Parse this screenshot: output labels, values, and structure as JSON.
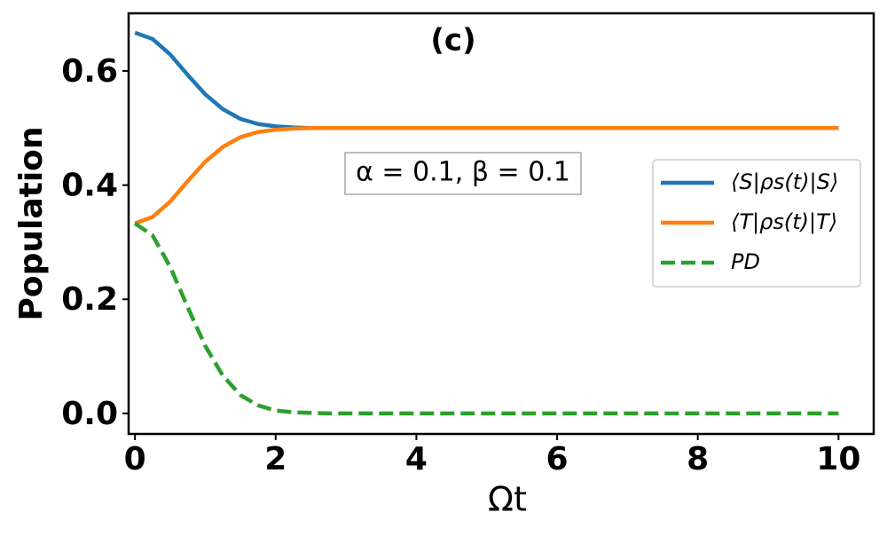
{
  "chart_data": {
    "type": "line",
    "title": "(c)",
    "annotation": "α = 0.1, β = 0.1",
    "x_label": "Ωt",
    "y_label": "Population",
    "x": [
      0,
      0.25,
      0.5,
      0.75,
      1,
      1.25,
      1.5,
      1.75,
      2,
      2.25,
      2.5,
      2.75,
      3,
      4,
      5,
      6,
      7,
      8,
      9,
      10
    ],
    "series": [
      {
        "name": "⟨S|ρs(t)|S⟩",
        "color": "#1f77b4",
        "style": "solid",
        "values": [
          0.667,
          0.656,
          0.629,
          0.593,
          0.559,
          0.533,
          0.516,
          0.507,
          0.503,
          0.501,
          0.5,
          0.5,
          0.5,
          0.5,
          0.5,
          0.5,
          0.5,
          0.5,
          0.5,
          0.5
        ]
      },
      {
        "name": "⟨T|ρs(t)|T⟩",
        "color": "#ff7f0e",
        "style": "solid",
        "values": [
          0.333,
          0.344,
          0.371,
          0.407,
          0.441,
          0.467,
          0.484,
          0.493,
          0.497,
          0.499,
          0.5,
          0.5,
          0.5,
          0.5,
          0.5,
          0.5,
          0.5,
          0.5,
          0.5,
          0.5
        ]
      },
      {
        "name": "PD",
        "color": "#2ca02c",
        "style": "dashed",
        "values": [
          0.333,
          0.312,
          0.257,
          0.186,
          0.118,
          0.066,
          0.032,
          0.014,
          0.005,
          0.002,
          0.001,
          0,
          0,
          0,
          0,
          0,
          0,
          0,
          0,
          0
        ]
      }
    ],
    "xlim": [
      -0.09,
      10.5
    ],
    "ylim": [
      -0.036,
      0.701
    ],
    "xticks": [
      0,
      2,
      4,
      6,
      8,
      10
    ],
    "yticks": [
      {
        "value": 0,
        "label": "0.0"
      },
      0.2,
      0.4,
      0.6
    ],
    "legend": "right",
    "grid": false
  }
}
